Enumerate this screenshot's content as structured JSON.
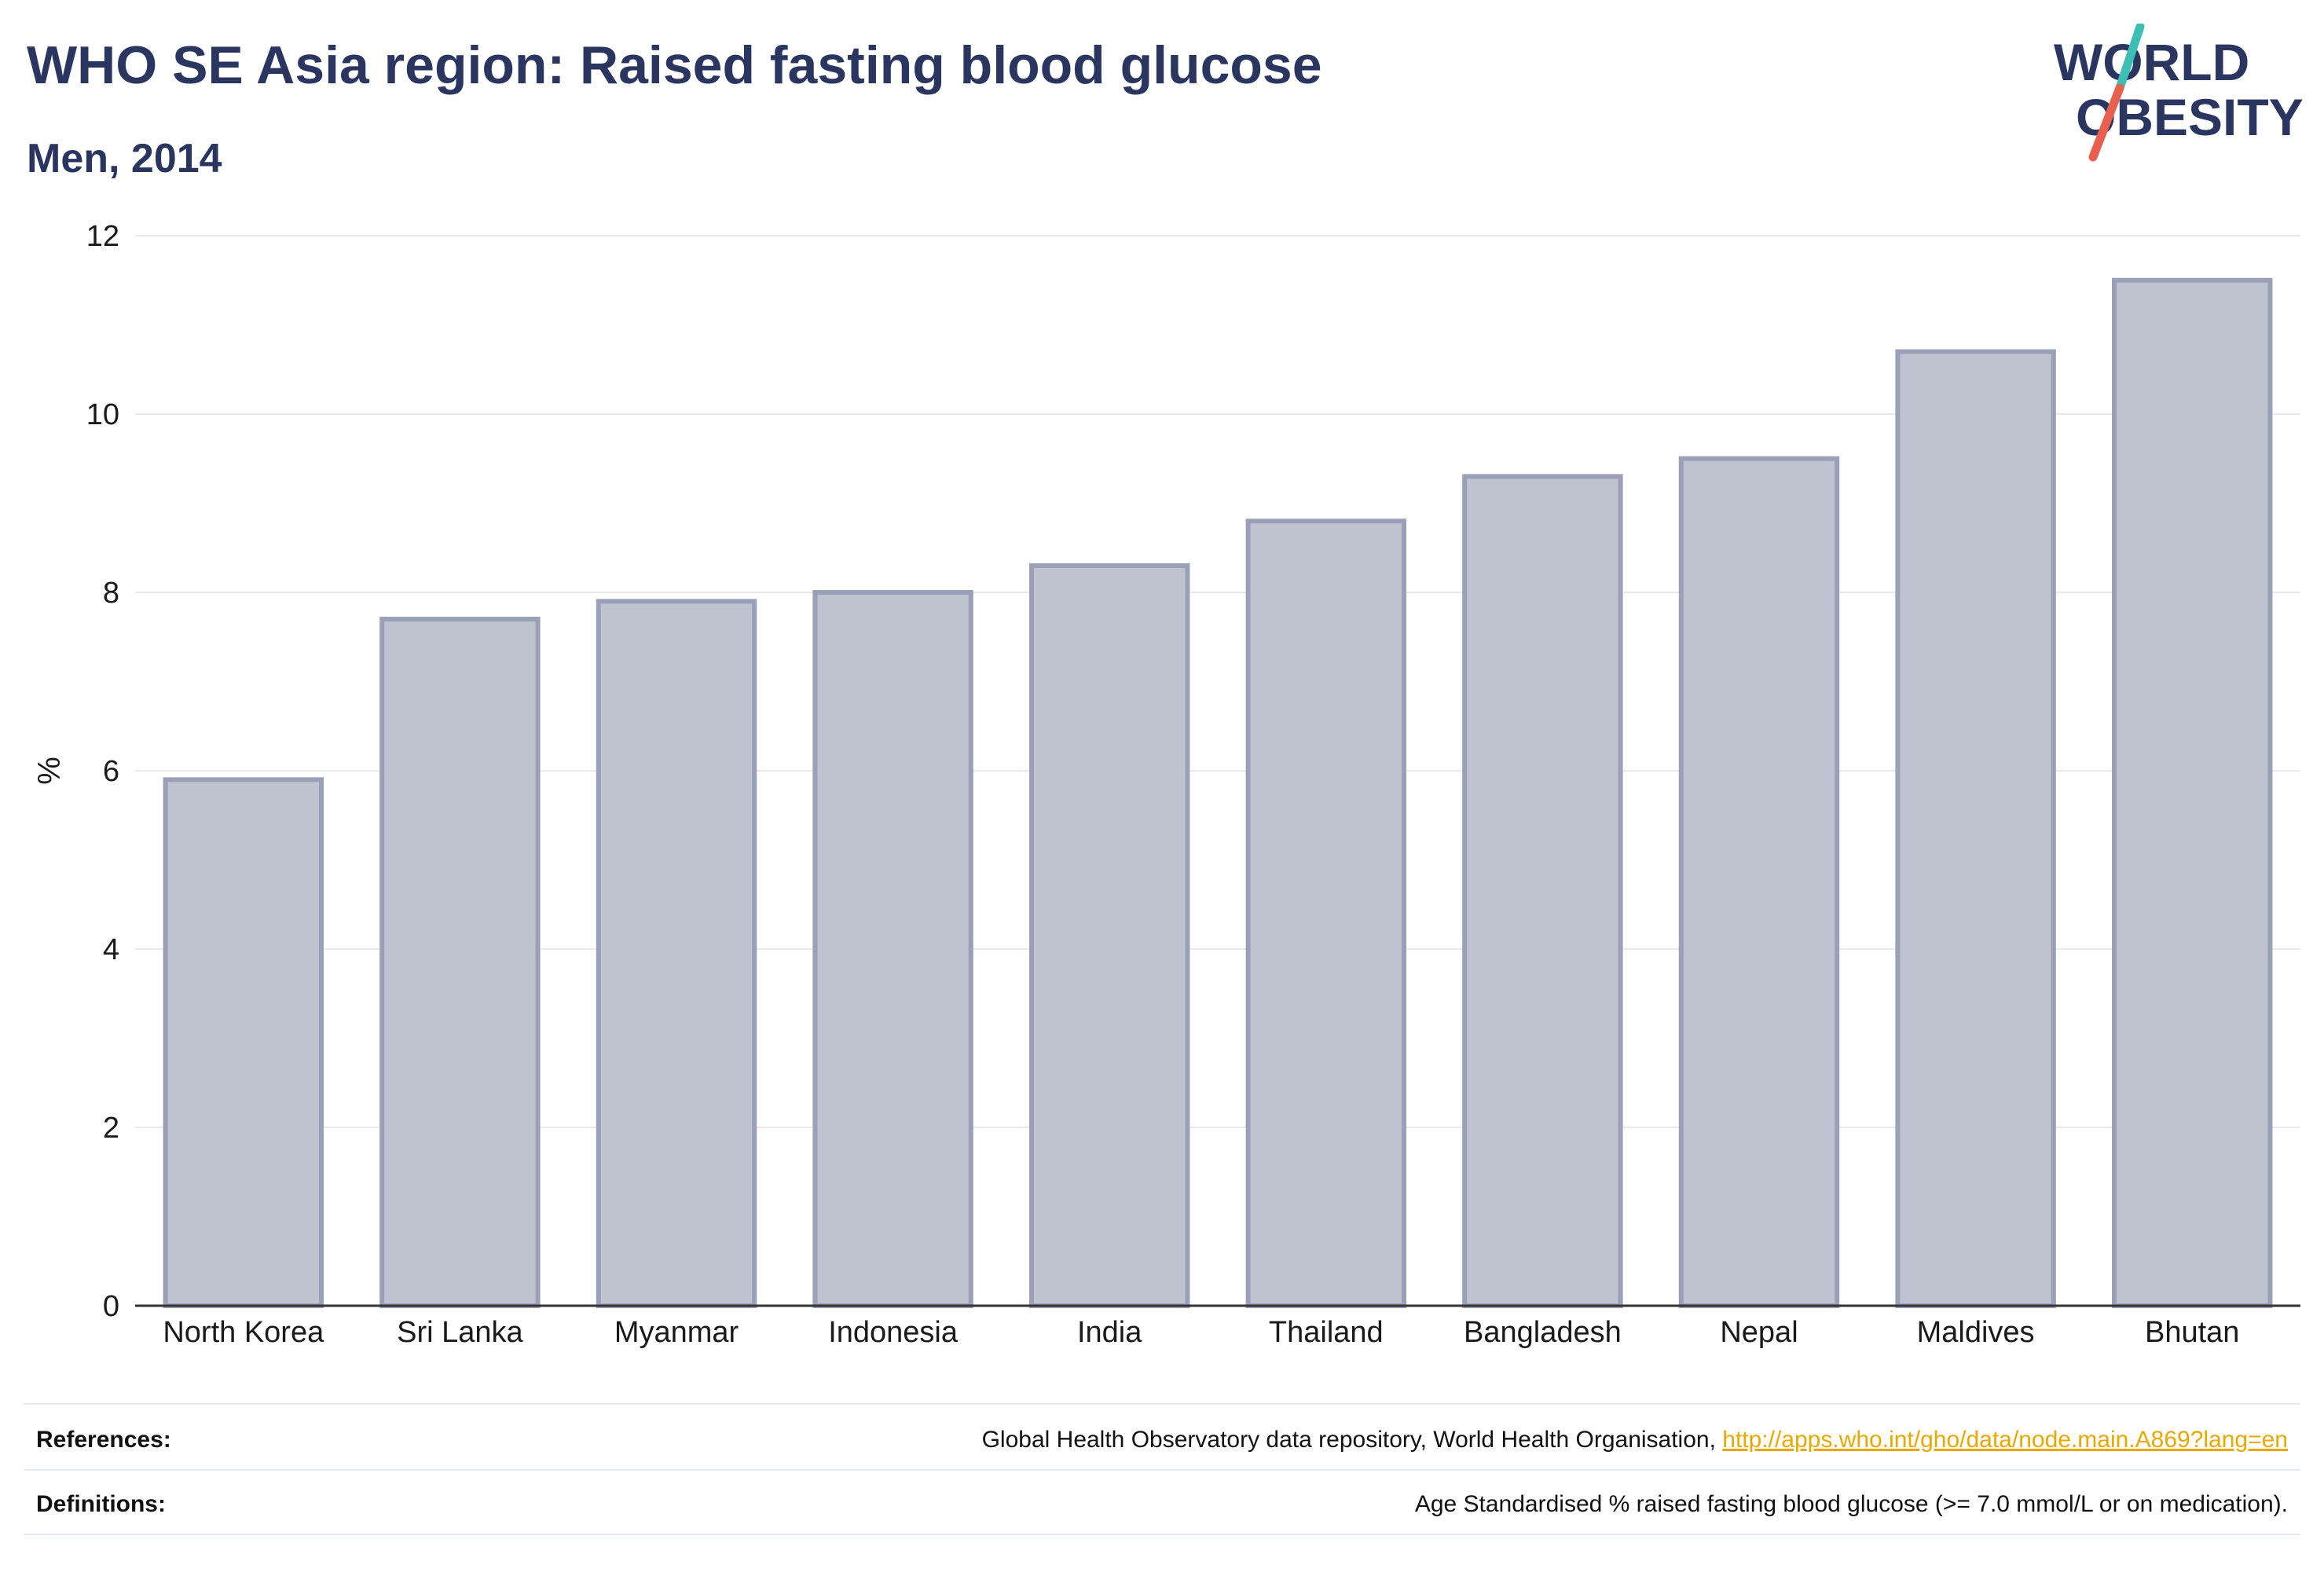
{
  "header": {
    "title": "WHO SE Asia region: Raised fasting blood glucose",
    "subtitle": "Men, 2014"
  },
  "logo": {
    "line1": "WORLD",
    "line2": "OBESITY",
    "colors": {
      "text": "#2b3660",
      "slash_top": "#3cbfb4",
      "slash_bottom": "#e8614e"
    }
  },
  "chart_data": {
    "type": "bar",
    "categories": [
      "North Korea",
      "Sri Lanka",
      "Myanmar",
      "Indonesia",
      "India",
      "Thailand",
      "Bangladesh",
      "Nepal",
      "Maldives",
      "Bhutan"
    ],
    "values": [
      5.9,
      7.7,
      7.9,
      8.0,
      8.3,
      8.8,
      9.3,
      9.5,
      10.7,
      11.5
    ],
    "title": "WHO SE Asia region: Raised fasting blood glucose",
    "subtitle": "Men, 2014",
    "xlabel": "",
    "ylabel": "%",
    "ylim": [
      0,
      12
    ],
    "yticks": [
      0,
      2,
      4,
      6,
      8,
      10,
      12
    ],
    "grid": true,
    "legend": "none",
    "colors": {
      "bar_fill": "#bfc2cf",
      "bar_stroke": "#9aa0b8",
      "axis": "#333333",
      "grid": "#e8e9ef",
      "text": "#1a1a1a"
    }
  },
  "footer": {
    "references_label": "References:",
    "references_text": "Global Health Observatory data repository, World Health Organisation, ",
    "references_link": "http://apps.who.int/gho/data/node.main.A869?lang=en",
    "definitions_label": "Definitions:",
    "definitions_text": "Age Standardised % raised fasting blood glucose (>= 7.0 mmol/L or on medication)."
  }
}
